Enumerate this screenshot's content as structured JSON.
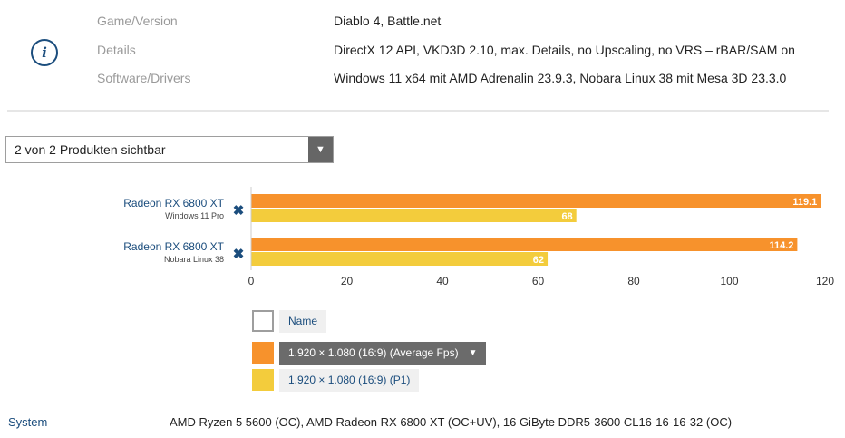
{
  "info": {
    "icon": "info-icon",
    "rows": [
      {
        "label": "Game/Version",
        "value": "Diablo 4, Battle.net"
      },
      {
        "label": "Details",
        "value": "DirectX 12 API, VKD3D 2.10, max. Details, no Upscaling, no VRS – rBAR/SAM on"
      },
      {
        "label": "Software/Drivers",
        "value": "Windows 11 x64 mit AMD Adrenalin 23.9.3, Nobara Linux 38 mit Mesa 3D 23.3.0"
      }
    ]
  },
  "product_select": {
    "label": "2 von 2 Produkten sichtbar",
    "icon": "chevron-down-icon"
  },
  "chart_data": {
    "type": "bar",
    "orientation": "horizontal",
    "categories": [
      {
        "name": "Radeon RX 6800 XT",
        "sub": "Windows 11 Pro"
      },
      {
        "name": "Radeon RX 6800 XT",
        "sub": "Nobara Linux 38"
      }
    ],
    "series": [
      {
        "name": "1.920 × 1.080 (16:9) (Average Fps)",
        "color": "#f7922c",
        "values": [
          119.1,
          114.2
        ],
        "value_labels": [
          "119.1",
          "114.2"
        ]
      },
      {
        "name": "1.920 × 1.080 (16:9) (P1)",
        "color": "#f3cc3c",
        "values": [
          68,
          62
        ],
        "value_labels": [
          "68",
          "62"
        ]
      }
    ],
    "xlim": [
      0,
      120
    ],
    "xticks": [
      "0",
      "20",
      "40",
      "60",
      "80",
      "100",
      "120"
    ],
    "grid": false,
    "remove_icon": "close-icon",
    "remove_symbol": "✖"
  },
  "legend": {
    "name_label": "Name",
    "avg_label": "1.920 × 1.080 (16:9) (Average Fps)",
    "avg_caret": "▼",
    "p1_label": "1.920 × 1.080 (16:9) (P1)"
  },
  "system": {
    "label": "System",
    "value": "AMD Ryzen 5 5600 (OC), AMD Radeon RX 6800 XT (OC+UV), 16 GiByte DDR5-3600 CL16-16-16-32 (OC)"
  },
  "colors": {
    "accent": "#1b4d7d",
    "avg": "#f7922c",
    "p1": "#f3cc3c"
  }
}
